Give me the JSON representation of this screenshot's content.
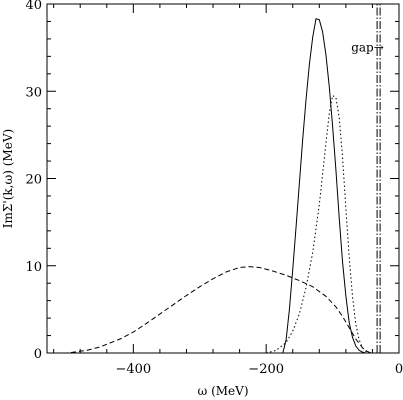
{
  "chart_data": {
    "type": "line",
    "xlabel": "ω (MeV)",
    "ylabel": "ImΣ'(k,ω) (MeV)",
    "xlim": [
      -530,
      0
    ],
    "ylim": [
      0,
      40
    ],
    "x_ticks": [
      -400,
      -200,
      0
    ],
    "x_tick_labels": [
      "−400",
      "−200",
      "0"
    ],
    "y_ticks": [
      0,
      10,
      20,
      30,
      40
    ],
    "y_tick_labels": [
      "0",
      "10",
      "20",
      "30",
      "40"
    ],
    "grid": false,
    "legend": false,
    "series": [
      {
        "style": "solid",
        "x": [
          -175,
          -170,
          -165,
          -160,
          -155,
          -150,
          -145,
          -140,
          -135,
          -130,
          -125,
          -120,
          -115,
          -110,
          -105,
          -100,
          -95,
          -90,
          -85,
          -80,
          -75,
          -70,
          -65,
          -60,
          -55,
          -50,
          -45,
          -40
        ],
        "y": [
          0,
          1.5,
          5,
          9.5,
          14.5,
          19.5,
          24.5,
          29,
          33,
          36.2,
          38.3,
          38.2,
          36.8,
          34.2,
          30.5,
          26,
          21,
          15.5,
          10.5,
          6.5,
          3.5,
          1.8,
          0.8,
          0.3,
          0.1,
          0,
          0,
          0
        ]
      },
      {
        "style": "dotted",
        "x": [
          -200,
          -185,
          -170,
          -160,
          -150,
          -140,
          -130,
          -120,
          -110,
          -105,
          -100,
          -95,
          -90,
          -85,
          -80,
          -75,
          -70,
          -65,
          -60,
          -55,
          -50,
          -45,
          -40
        ],
        "y": [
          0,
          0.3,
          1.2,
          2.5,
          4.5,
          7.5,
          11.5,
          17,
          24,
          27.5,
          29.5,
          29.3,
          27,
          22.5,
          16.5,
          11,
          6.5,
          3.3,
          1.5,
          0.6,
          0.2,
          0,
          0
        ]
      },
      {
        "style": "dashed",
        "x": [
          -530,
          -500,
          -470,
          -450,
          -420,
          -400,
          -380,
          -350,
          -320,
          -300,
          -280,
          -260,
          -240,
          -225,
          -210,
          -190,
          -170,
          -150,
          -130,
          -110,
          -95,
          -85,
          -75,
          -65,
          -55,
          -48,
          -42
        ],
        "y": [
          0,
          0,
          0.3,
          0.7,
          1.6,
          2.4,
          3.4,
          5,
          6.6,
          7.6,
          8.5,
          9.3,
          9.8,
          9.9,
          9.8,
          9.4,
          8.9,
          8.3,
          7.6,
          6.5,
          5.3,
          4.2,
          2.9,
          1.6,
          0.6,
          0.2,
          0
        ]
      },
      {
        "style": "dash-dot",
        "x": [
          -33,
          -33
        ],
        "y": [
          0,
          40
        ]
      }
    ],
    "annotations": [
      {
        "text": "gap→",
        "x": -47,
        "y": 35
      }
    ]
  }
}
